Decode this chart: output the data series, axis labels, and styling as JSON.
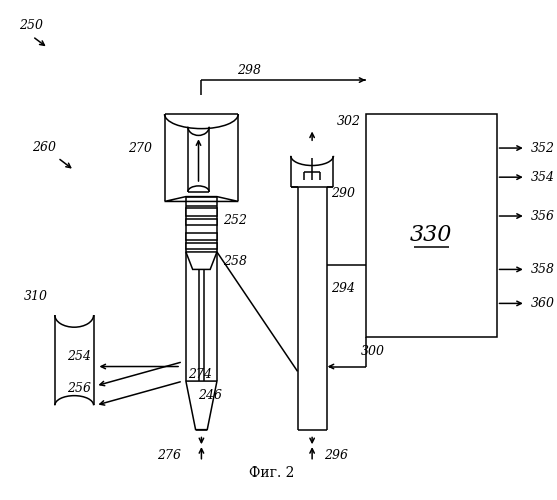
{
  "fig_width": 5.57,
  "fig_height": 5.0,
  "dpi": 100,
  "background": "#ffffff",
  "line_color": "#000000",
  "lw": 1.1,
  "title": "Фиг. 2"
}
